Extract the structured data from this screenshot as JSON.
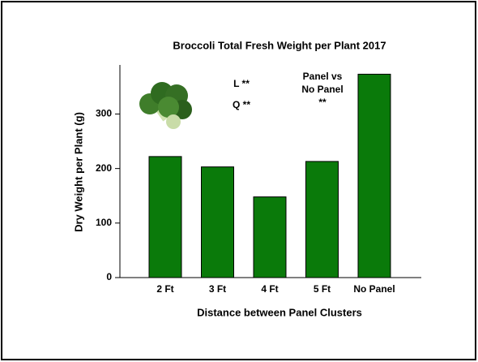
{
  "chart_data": {
    "type": "bar",
    "title": "Broccoli Total Fresh Weight per Plant 2017",
    "x_label": "Distance between Panel Clusters",
    "y_label": "Dry Weight per Plant (g)",
    "categories": [
      "2 Ft",
      "3 Ft",
      "4 Ft",
      "5 Ft",
      "No Panel"
    ],
    "values": [
      222,
      203,
      148,
      213,
      373
    ],
    "color": "#0a7a0a",
    "ylim": [
      0,
      390
    ],
    "yticks": [
      0,
      100,
      200,
      300
    ],
    "annotations": [
      "L **",
      "Q **",
      "Panel vs",
      "No Panel",
      "**"
    ]
  }
}
